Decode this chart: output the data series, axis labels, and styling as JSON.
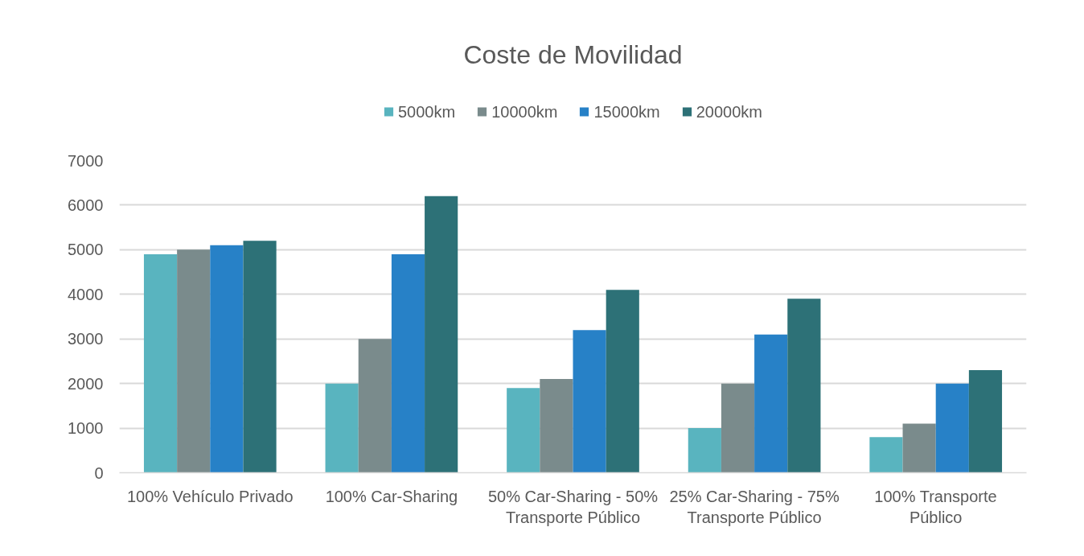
{
  "chart_data": {
    "type": "bar",
    "title": "Coste de Movilidad",
    "categories": [
      "100% Vehículo Privado",
      "100% Car-Sharing",
      "50% Car-Sharing - 50% Transporte Público",
      "25% Car-Sharing - 75% Transporte Público",
      "100% Transporte Público"
    ],
    "series": [
      {
        "name": "5000km",
        "color": "#59b4bf",
        "values": [
          4900,
          2000,
          1900,
          1000,
          800
        ]
      },
      {
        "name": "10000km",
        "color": "#7a8b8c",
        "values": [
          5000,
          3000,
          2100,
          2000,
          1100
        ]
      },
      {
        "name": "15000km",
        "color": "#2781c7",
        "values": [
          5100,
          4900,
          3200,
          3100,
          2000
        ]
      },
      {
        "name": "20000km",
        "color": "#2d7177",
        "values": [
          5200,
          6200,
          4100,
          3900,
          2300
        ]
      }
    ],
    "ylim": [
      0,
      7000
    ],
    "yticks": [
      0,
      1000,
      2000,
      3000,
      4000,
      5000,
      6000,
      7000
    ],
    "grid": "y",
    "legend": "top"
  }
}
